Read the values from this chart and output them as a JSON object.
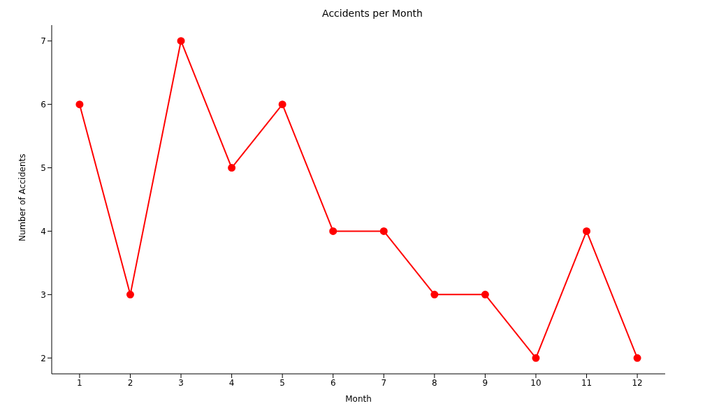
{
  "chart_data": {
    "type": "line",
    "title": "Accidents per Month",
    "xlabel": "Month",
    "ylabel": "Number of Accidents",
    "x": [
      1,
      2,
      3,
      4,
      5,
      6,
      7,
      8,
      9,
      10,
      11,
      12
    ],
    "series": [
      {
        "color": "#ff0000",
        "values": [
          6,
          3,
          7,
          5,
          6,
          4,
          4,
          3,
          3,
          2,
          4,
          2
        ]
      }
    ],
    "xlim": [
      0.45,
      12.55
    ],
    "xticks": [
      1,
      2,
      3,
      4,
      5,
      6,
      7,
      8,
      9,
      10,
      11,
      12
    ],
    "ylim": [
      1.75,
      7.25
    ],
    "yticks": [
      2,
      3,
      4,
      5,
      6,
      7
    ],
    "grid": false,
    "legend": false,
    "marker": "circle",
    "line_style": "solid"
  }
}
